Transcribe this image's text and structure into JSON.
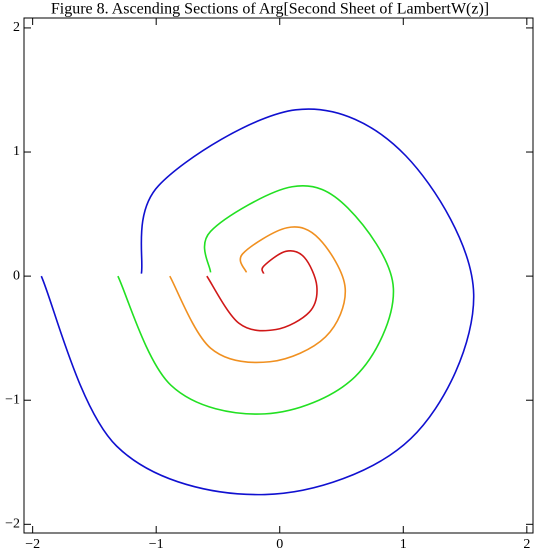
{
  "chart_data": {
    "type": "line",
    "title": "Figure 8. Ascending Sections of Arg[Second Sheet of LambertW(z)]",
    "xlim": [
      -2.07,
      2.05
    ],
    "ylim": [
      -2.07,
      2.08
    ],
    "xticks": [
      {
        "value": -2,
        "label": "−2"
      },
      {
        "value": -1,
        "label": "−1"
      },
      0,
      1,
      2
    ],
    "yticks": [
      {
        "value": -2,
        "label": "−2"
      },
      {
        "value": -1,
        "label": "−1"
      },
      0,
      1,
      2
    ],
    "series": [
      {
        "color": "#1010d0",
        "x": [
          -1.93,
          -1.32,
          -0.12,
          1.06,
          1.57,
          1.02,
          0.13,
          -0.98,
          -1.12
        ],
        "values": [
          0,
          -1.37,
          -1.76,
          -1.31,
          -0.15,
          0.97,
          1.34,
          0.73,
          0.02
        ]
      },
      {
        "color": "#22e022",
        "x": [
          -1.31,
          -0.88,
          -0.12,
          0.61,
          0.92,
          0.55,
          0.1,
          -0.56,
          -0.56
        ],
        "values": [
          0,
          -0.88,
          -1.11,
          -0.81,
          -0.1,
          0.55,
          0.72,
          0.36,
          0.03
        ]
      },
      {
        "color": "#f09020",
        "x": [
          -0.89,
          -0.56,
          -0.08,
          0.37,
          0.53,
          0.32,
          0.06,
          -0.3,
          -0.27
        ],
        "values": [
          0,
          -0.58,
          -0.69,
          -0.49,
          -0.1,
          0.3,
          0.39,
          0.18,
          0.03
        ]
      },
      {
        "color": "#d01818",
        "x": [
          -0.59,
          -0.33,
          -0.03,
          0.24,
          0.3,
          0.2,
          0.05,
          -0.13,
          -0.13
        ],
        "values": [
          0,
          -0.38,
          -0.43,
          -0.29,
          -0.08,
          0.15,
          0.2,
          0.08,
          0.02
        ]
      }
    ]
  }
}
